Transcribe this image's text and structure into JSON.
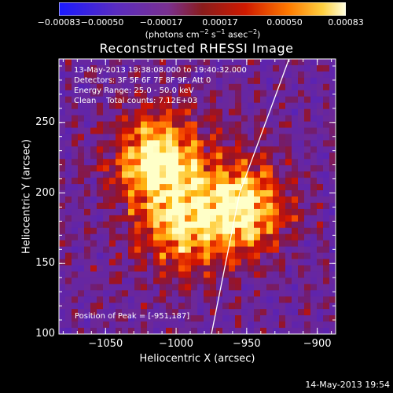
{
  "title": "Reconstructed RHESSI Image",
  "colorbar": {
    "ticks": [
      "-0.00083",
      "-0.00050",
      "-0.00017",
      "0.00017",
      "0.00050",
      "0.00083"
    ],
    "unit_parts": [
      "(photons cm",
      "-2",
      " s",
      "-1",
      " asec",
      "-2",
      ")"
    ],
    "range": [
      -0.00083,
      0.00083
    ],
    "colormap": "red-temperature with blue negatives"
  },
  "info": {
    "time_range": "13-May-2013 19:38:08.000 to 19:40:32.000",
    "detectors": "Detectors: 3F 5F 6F 7F 8F 9F, Att 0",
    "energy_range": "Energy Range: 25.0 - 50.0 keV",
    "clean_counts": "Clean    Total counts: 7.12E+03"
  },
  "peak_label": "Position of Peak = [-951,187]",
  "footer": "14-May-2013 19:54",
  "chart_data": {
    "type": "heatmap",
    "title": "Reconstructed RHESSI Image",
    "xlabel": "Heliocentric X (arcsec)",
    "ylabel": "Heliocentric Y (arcsec)",
    "xlim": [
      -1083,
      -887
    ],
    "ylim": [
      100,
      295
    ],
    "x_ticks": [
      -1050,
      -1000,
      -950,
      -900
    ],
    "y_ticks": [
      100,
      150,
      200,
      250
    ],
    "x_tick_labels": [
      "−1050",
      "−1000",
      "−950",
      "−900"
    ],
    "y_tick_labels": [
      "100",
      "150",
      "200",
      "250"
    ],
    "peak_position": [
      -951,
      187
    ],
    "limb_line": [
      [
        -920,
        295
      ],
      [
        -955,
        200
      ],
      [
        -975,
        100
      ]
    ],
    "sources": [
      {
        "x": -1015,
        "y": 225,
        "intensity": 0.00083
      },
      {
        "x": -950,
        "y": 188,
        "intensity": 0.00078
      },
      {
        "x": -995,
        "y": 175,
        "intensity": 0.00055
      }
    ]
  }
}
